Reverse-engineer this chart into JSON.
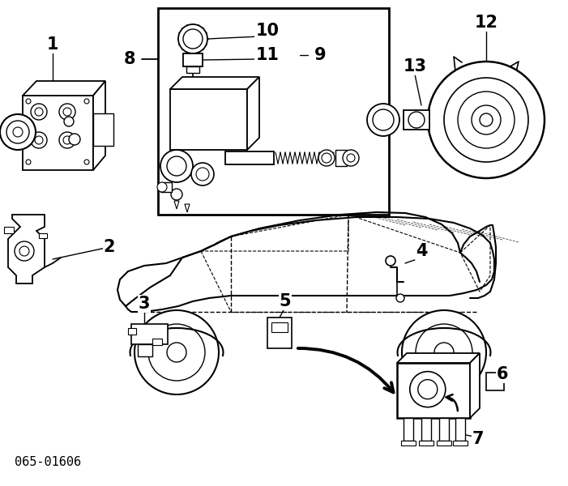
{
  "background_color": "#ffffff",
  "diagram_code": "065-01606",
  "line_color": "#000000",
  "fig_width": 7.01,
  "fig_height": 6.0,
  "dpi": 100
}
